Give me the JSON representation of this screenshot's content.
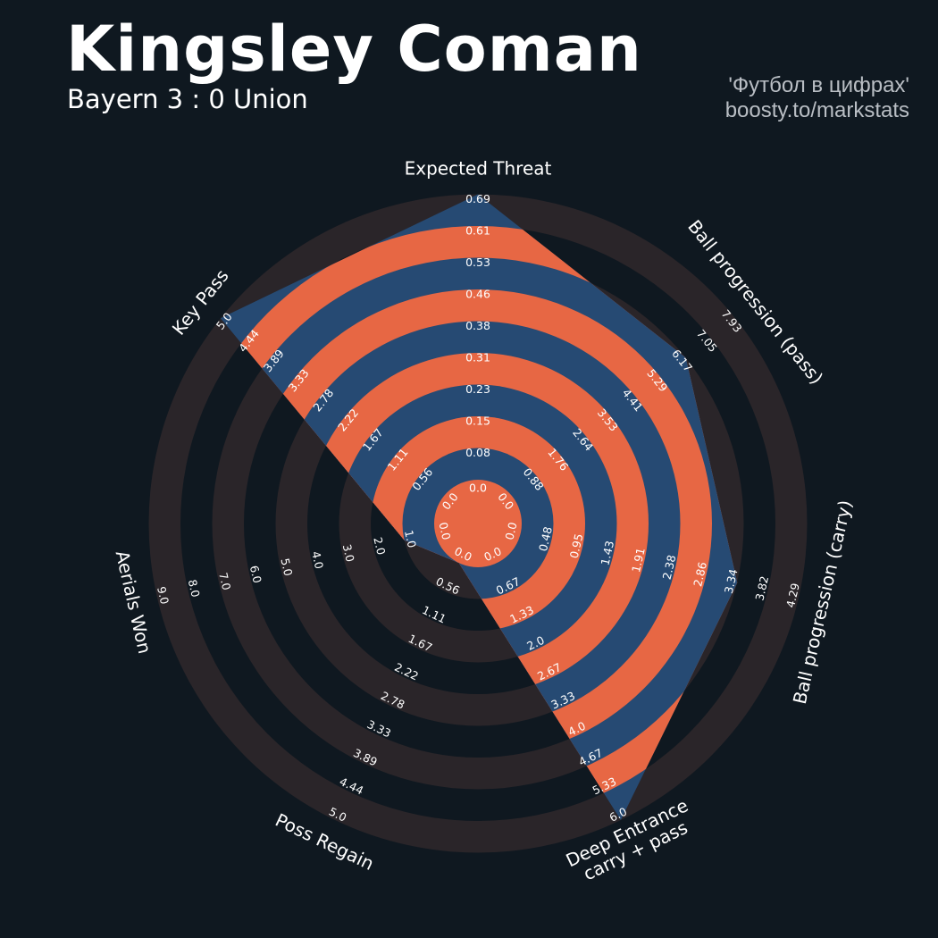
{
  "header": {
    "title": "Kingsley Coman",
    "subtitle": "Bayern 3 : 0 Union",
    "credit_line1": "'Футбол в цифрах'",
    "credit_line2": "boosty.to/markstats"
  },
  "colors": {
    "background": "#0f1820",
    "rings_dark": "#2a2529",
    "rings_data_alt": "#e76744",
    "polygon": "#264a73",
    "text": "#ffffff",
    "credit": "#b9bec4"
  },
  "chart_data": {
    "type": "radar",
    "params": [
      "Expected Threat",
      "Ball progression (pass)",
      "Ball progression (carry)",
      "Deep Entrance\ncarry + pass",
      "Poss Regain",
      "Aerials Won",
      "Key Pass"
    ],
    "values": [
      0.69,
      6.17,
      3.34,
      6.0,
      0.0,
      1.0,
      5.0
    ],
    "ranges": [
      [
        0.0,
        0.69
      ],
      [
        0.0,
        7.93
      ],
      [
        0.0,
        4.29
      ],
      [
        0.0,
        6.0
      ],
      [
        0.0,
        5.0
      ],
      [
        0.0,
        9.0
      ],
      [
        0.0,
        5.0
      ]
    ],
    "tick_labels": [
      [
        "0.0",
        "0.08",
        "0.15",
        "0.23",
        "0.31",
        "0.38",
        "0.46",
        "0.53",
        "0.61",
        "0.69"
      ],
      [
        "0.0",
        "0.88",
        "1.76",
        "2.64",
        "3.53",
        "4.41",
        "5.29",
        "6.17",
        "7.05",
        "7.93"
      ],
      [
        "0.0",
        "0.48",
        "0.95",
        "1.43",
        "1.91",
        "2.38",
        "2.86",
        "3.34",
        "3.82",
        "4.29"
      ],
      [
        "0.0",
        "0.67",
        "1.33",
        "2.0",
        "2.67",
        "3.33",
        "4.0",
        "4.67",
        "5.33",
        "6.0"
      ],
      [
        "0.0",
        "0.56",
        "1.11",
        "1.67",
        "2.22",
        "2.78",
        "3.33",
        "3.89",
        "4.44",
        "5.0"
      ],
      [
        "0.0",
        "1.0",
        "2.0",
        "3.0",
        "4.0",
        "5.0",
        "6.0",
        "7.0",
        "8.0",
        "9.0"
      ],
      [
        "0.0",
        "0.56",
        "1.11",
        "1.67",
        "2.22",
        "2.78",
        "3.33",
        "3.89",
        "4.44",
        "5.0"
      ]
    ]
  }
}
